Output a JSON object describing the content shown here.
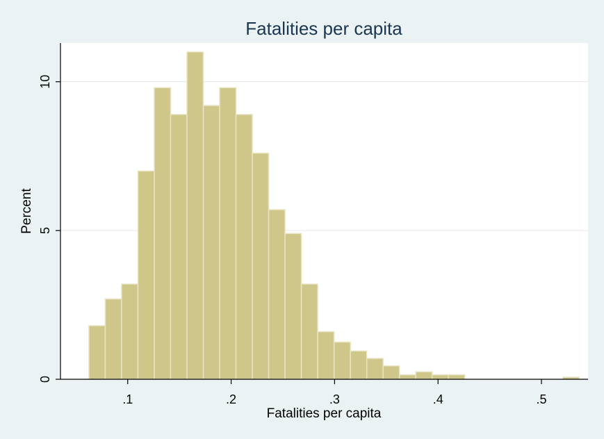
{
  "chart_data": {
    "type": "bar",
    "title": "Fatalities per capita",
    "xlabel": "Fatalities per capita",
    "ylabel": "Percent",
    "xlim": [
      0.035,
      0.545
    ],
    "ylim": [
      0,
      11.3
    ],
    "x_ticks": [
      {
        "value": 0.1,
        "label": ".1"
      },
      {
        "value": 0.2,
        "label": ".2"
      },
      {
        "value": 0.3,
        "label": ".3"
      },
      {
        "value": 0.4,
        "label": ".4"
      },
      {
        "value": 0.5,
        "label": ".5"
      }
    ],
    "y_ticks": [
      {
        "value": 0,
        "label": "0"
      },
      {
        "value": 5,
        "label": "5"
      },
      {
        "value": 10,
        "label": "10"
      }
    ],
    "grid": true,
    "legend": "none",
    "bars": [
      {
        "x0": 0.0625,
        "x1": 0.0783,
        "value": 1.8
      },
      {
        "x0": 0.0783,
        "x1": 0.0941,
        "value": 2.7
      },
      {
        "x0": 0.0941,
        "x1": 0.1099,
        "value": 3.2
      },
      {
        "x0": 0.1099,
        "x1": 0.1257,
        "value": 7.0
      },
      {
        "x0": 0.1257,
        "x1": 0.1415,
        "value": 9.8
      },
      {
        "x0": 0.1415,
        "x1": 0.1573,
        "value": 8.9
      },
      {
        "x0": 0.1573,
        "x1": 0.1731,
        "value": 11.0
      },
      {
        "x0": 0.1731,
        "x1": 0.1889,
        "value": 9.2
      },
      {
        "x0": 0.1889,
        "x1": 0.2047,
        "value": 9.8
      },
      {
        "x0": 0.2047,
        "x1": 0.2205,
        "value": 8.9
      },
      {
        "x0": 0.2205,
        "x1": 0.2363,
        "value": 7.6
      },
      {
        "x0": 0.2363,
        "x1": 0.2521,
        "value": 5.7
      },
      {
        "x0": 0.2521,
        "x1": 0.2679,
        "value": 4.9
      },
      {
        "x0": 0.2679,
        "x1": 0.2837,
        "value": 3.2
      },
      {
        "x0": 0.2837,
        "x1": 0.2995,
        "value": 1.6
      },
      {
        "x0": 0.2995,
        "x1": 0.3153,
        "value": 1.25
      },
      {
        "x0": 0.3153,
        "x1": 0.3311,
        "value": 0.95
      },
      {
        "x0": 0.3311,
        "x1": 0.3469,
        "value": 0.7
      },
      {
        "x0": 0.3469,
        "x1": 0.3627,
        "value": 0.45
      },
      {
        "x0": 0.3627,
        "x1": 0.3785,
        "value": 0.15
      },
      {
        "x0": 0.3785,
        "x1": 0.3943,
        "value": 0.25
      },
      {
        "x0": 0.3943,
        "x1": 0.4101,
        "value": 0.15
      },
      {
        "x0": 0.4101,
        "x1": 0.4259,
        "value": 0.15
      },
      {
        "x0": 0.5207,
        "x1": 0.5365,
        "value": 0.07
      }
    ],
    "colors": {
      "bar_fill": "#cfc78a",
      "bar_outline": "#e8e4c4",
      "plot_background": "#ffffff",
      "outer_background": "#eaf2f3",
      "title": "#1b3652"
    }
  }
}
